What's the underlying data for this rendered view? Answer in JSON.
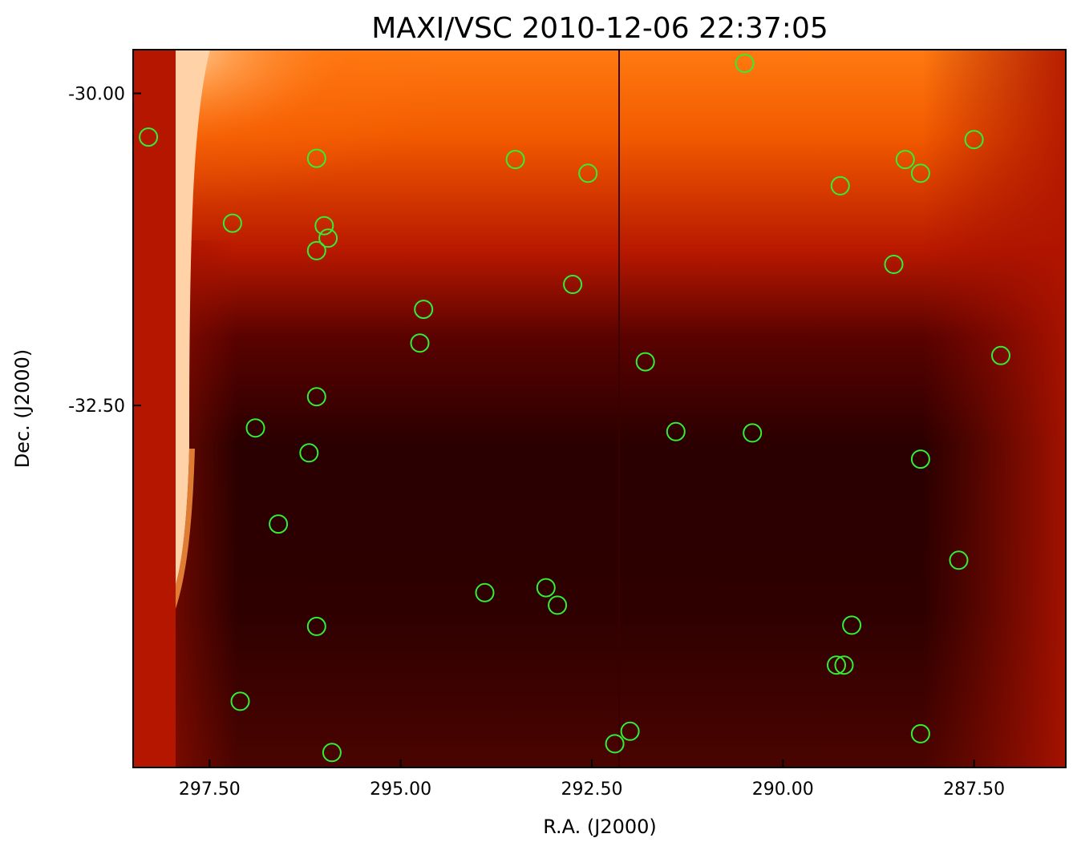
{
  "chart_data": {
    "type": "scatter",
    "title": "MAXI/VSC 2010-12-06 22:37:05",
    "xlabel": "R.A. (J2000)",
    "ylabel": "Dec. (J2000)",
    "x_ticks": [
      {
        "value": 297.5,
        "label": "297.50"
      },
      {
        "value": 295.0,
        "label": "295.00"
      },
      {
        "value": 292.5,
        "label": "292.50"
      },
      {
        "value": 290.0,
        "label": "290.00"
      },
      {
        "value": 287.5,
        "label": "287.50"
      }
    ],
    "y_ticks": [
      {
        "value": -32.5,
        "label": "-32.50"
      },
      {
        "value": -30.0,
        "label": "-30.00"
      }
    ],
    "xlim": [
      298.5,
      286.3
    ],
    "ylim": [
      -29.65,
      -35.4
    ],
    "background": "image",
    "colors": {
      "marker": "#33ee33",
      "frame": "#000000",
      "image_dark": "#2a0000",
      "image_mid": "#b81800",
      "image_bright": "#ff8a20",
      "image_saturated": "#ffd2a8"
    },
    "series": [
      {
        "marker": "circle",
        "points": [
          {
            "x": 295.9,
            "y": -35.28
          },
          {
            "x": 297.1,
            "y": -34.87
          },
          {
            "x": 292.2,
            "y": -35.21
          },
          {
            "x": 292.0,
            "y": -35.11
          },
          {
            "x": 288.2,
            "y": -35.13
          },
          {
            "x": 289.3,
            "y": -34.58
          },
          {
            "x": 289.2,
            "y": -34.58
          },
          {
            "x": 296.1,
            "y": -34.27
          },
          {
            "x": 293.9,
            "y": -34.0
          },
          {
            "x": 293.1,
            "y": -33.96
          },
          {
            "x": 292.95,
            "y": -34.1
          },
          {
            "x": 289.1,
            "y": -34.26
          },
          {
            "x": 287.7,
            "y": -33.74
          },
          {
            "x": 296.6,
            "y": -33.45
          },
          {
            "x": 290.4,
            "y": -32.72
          },
          {
            "x": 288.2,
            "y": -32.93
          },
          {
            "x": 296.2,
            "y": -32.88
          },
          {
            "x": 296.9,
            "y": -32.68
          },
          {
            "x": 291.4,
            "y": -32.71
          },
          {
            "x": 296.1,
            "y": -32.43
          },
          {
            "x": 294.75,
            "y": -32.0
          },
          {
            "x": 291.8,
            "y": -32.15
          },
          {
            "x": 287.15,
            "y": -32.1
          },
          {
            "x": 294.7,
            "y": -31.73
          },
          {
            "x": 292.75,
            "y": -31.53
          },
          {
            "x": 288.55,
            "y": -31.37
          },
          {
            "x": 297.2,
            "y": -31.04
          },
          {
            "x": 296.1,
            "y": -31.26
          },
          {
            "x": 295.95,
            "y": -31.16
          },
          {
            "x": 296.0,
            "y": -31.06
          },
          {
            "x": 289.25,
            "y": -30.74
          },
          {
            "x": 296.1,
            "y": -30.52
          },
          {
            "x": 293.5,
            "y": -30.53
          },
          {
            "x": 292.55,
            "y": -30.64
          },
          {
            "x": 288.2,
            "y": -30.64
          },
          {
            "x": 288.4,
            "y": -30.53
          },
          {
            "x": 287.5,
            "y": -30.37
          },
          {
            "x": 298.3,
            "y": -30.35
          },
          {
            "x": 290.5,
            "y": -29.76
          }
        ]
      }
    ]
  }
}
